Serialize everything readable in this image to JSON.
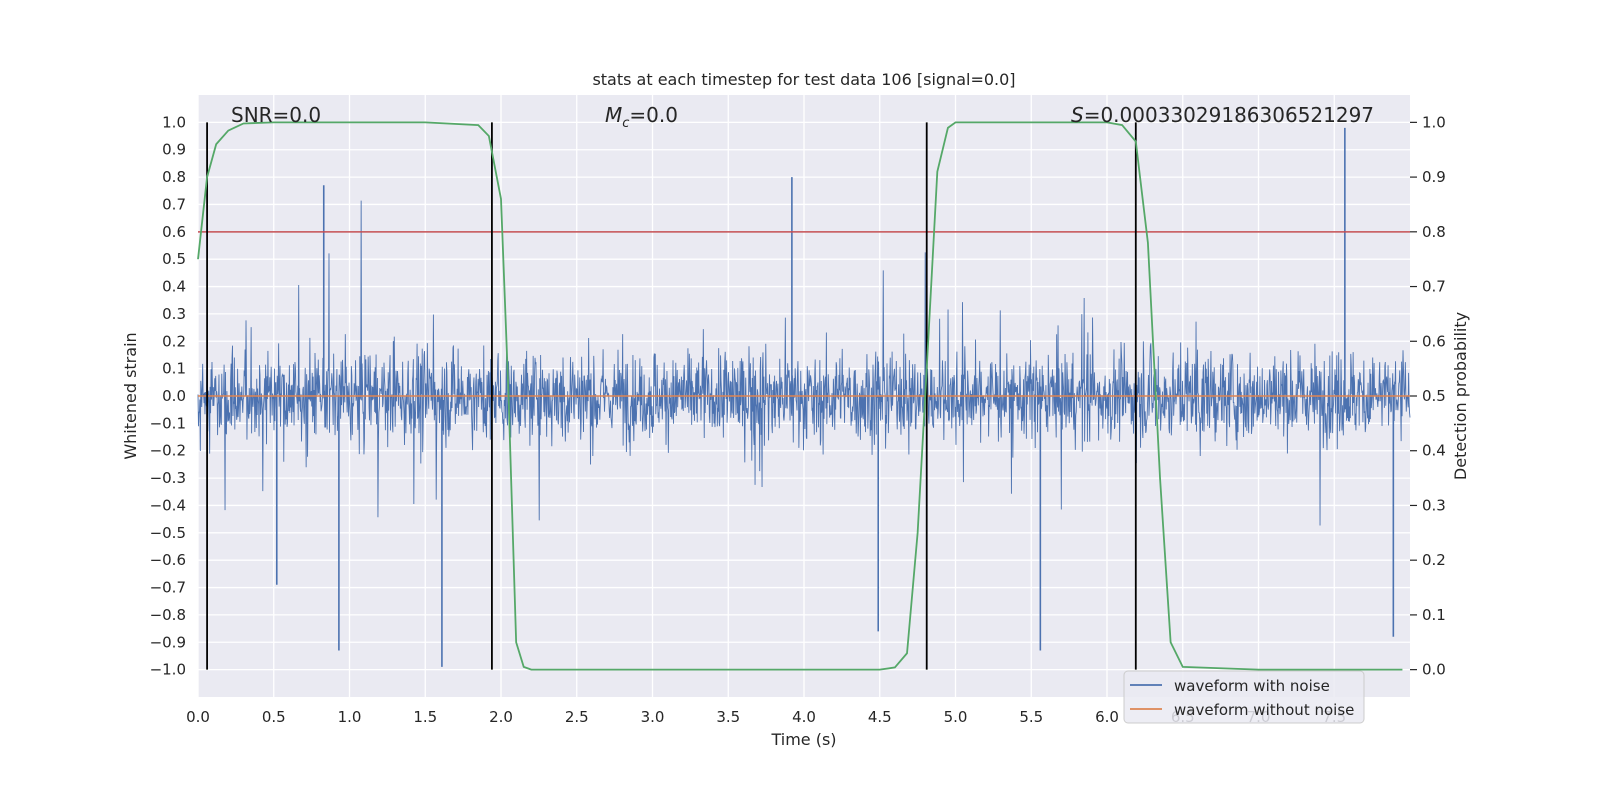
{
  "chart_data": {
    "type": "line",
    "title": "stats at each timestep for test data 106 [signal=0.0]",
    "xlabel": "Time (s)",
    "ylabel": "Whitened strain",
    "y2label": "Detection probability",
    "xlim": [
      0.0,
      8.0
    ],
    "ylim": [
      -1.1,
      1.1
    ],
    "y2lim": [
      -0.05,
      1.05
    ],
    "x_ticks": [
      0.0,
      0.5,
      1.0,
      1.5,
      2.0,
      2.5,
      3.0,
      3.5,
      4.0,
      4.5,
      5.0,
      5.5,
      6.0,
      6.5,
      7.0,
      7.5
    ],
    "x_tick_labels": [
      "0.0",
      "0.5",
      "1.0",
      "1.5",
      "2.0",
      "2.5",
      "3.0",
      "3.5",
      "4.0",
      "4.5",
      "5.0",
      "5.5",
      "6.0",
      "6.5",
      "7.0",
      "7.5"
    ],
    "y_ticks": [
      1.0,
      0.9,
      0.8,
      0.7,
      0.6,
      0.5,
      0.4,
      0.3,
      0.2,
      0.1,
      0.0,
      -0.1,
      -0.2,
      -0.3,
      -0.4,
      -0.5,
      -0.6,
      -0.7,
      -0.8,
      -0.9,
      -1.0
    ],
    "y_tick_labels": [
      "1.0",
      "0.9",
      "0.8",
      "0.7",
      "0.6",
      "0.5",
      "0.4",
      "0.3",
      "0.2",
      "0.1",
      "0.0",
      "−0.1",
      "−0.2",
      "−0.3",
      "−0.4",
      "−0.5",
      "−0.6",
      "−0.7",
      "−0.8",
      "−0.9",
      "−1.0"
    ],
    "y2_ticks": [
      1.0,
      0.9,
      0.8,
      0.7,
      0.6,
      0.5,
      0.4,
      0.3,
      0.2,
      0.1,
      0.0
    ],
    "y2_tick_labels": [
      "1.0",
      "0.9",
      "0.8",
      "0.7",
      "0.6",
      "0.5",
      "0.4",
      "0.3",
      "0.2",
      "0.1",
      "0.0"
    ],
    "annotations": {
      "snr": "SNR=0.0",
      "mc_symbol": "M",
      "mc_sub": "c",
      "mc_rest": "=0.0",
      "s_symbol": "S",
      "s_rest": "=0.00033029186306521297"
    },
    "threshold_line": {
      "value": 0.8,
      "color": "#c44e52"
    },
    "vertical_lines": [
      0.06,
      1.94,
      4.81,
      6.19
    ],
    "series": [
      {
        "name": "waveform with noise",
        "color": "#4c72b0",
        "summary": "noise trace sampled at 2048 Hz, amplitude mostly within ±0.55, spikes near ±0.8",
        "spikes": [
          {
            "t": 0.93,
            "v": -0.93
          },
          {
            "t": 1.61,
            "v": -0.99
          },
          {
            "t": 3.92,
            "v": 0.8
          },
          {
            "t": 7.57,
            "v": 0.98
          },
          {
            "t": 7.89,
            "v": -0.88
          },
          {
            "t": 5.56,
            "v": -0.93
          },
          {
            "t": 4.49,
            "v": -0.86
          },
          {
            "t": 0.52,
            "v": -0.69
          },
          {
            "t": 0.83,
            "v": 0.77
          }
        ]
      },
      {
        "name": "waveform without noise",
        "color": "#dd8452",
        "value": 0.0
      },
      {
        "name": "detection probability",
        "color": "#55a868",
        "axis": "right",
        "x": [
          0.0,
          0.06,
          0.12,
          0.2,
          0.3,
          0.5,
          1.0,
          1.5,
          1.85,
          1.92,
          2.0,
          2.05,
          2.1,
          2.15,
          2.2,
          2.3,
          3.0,
          4.0,
          4.5,
          4.6,
          4.68,
          4.75,
          4.81,
          4.88,
          4.95,
          5.0,
          5.5,
          6.0,
          6.1,
          6.19,
          6.27,
          6.35,
          6.42,
          6.5,
          7.0,
          7.95
        ],
        "y": [
          0.75,
          0.9,
          0.96,
          0.985,
          0.998,
          1.0,
          1.0,
          1.0,
          0.995,
          0.975,
          0.86,
          0.5,
          0.05,
          0.005,
          0.0,
          0.0,
          0.0,
          0.0,
          0.0,
          0.004,
          0.03,
          0.25,
          0.55,
          0.91,
          0.99,
          1.0,
          1.0,
          1.0,
          0.995,
          0.965,
          0.78,
          0.35,
          0.05,
          0.005,
          0.0,
          0.0
        ]
      }
    ],
    "legend": {
      "position": "lower-right",
      "entries": [
        {
          "label": "waveform with noise",
          "color": "#4c72b0"
        },
        {
          "label": "waveform without noise",
          "color": "#dd8452"
        }
      ]
    },
    "grid": true,
    "background": "#eaeaf2"
  }
}
